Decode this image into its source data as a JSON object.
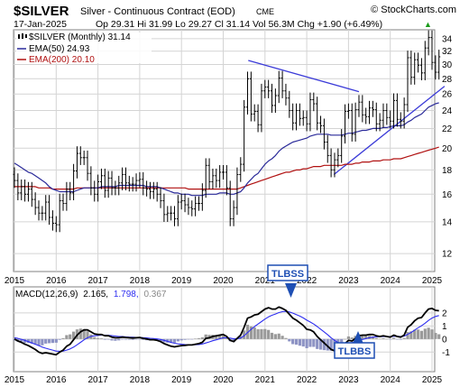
{
  "header": {
    "symbol": "$SILVER",
    "name": "Silver - Continuous Contract (EOD)",
    "exchange": "CME",
    "watermark": "© StockCharts.com",
    "date": "17-Jan-2025",
    "quote": "Op 29.31  Hi 31.99  Lo 29.27  Cl 31.14  Vol 56.3M  Chg +1.90 (+6.49%)",
    "chg_arrow": "▲"
  },
  "legend": {
    "main": "$SILVER (Monthly) 31.14",
    "ema50": "EMA(50) 24.93",
    "ema200": "EMA(200) 20.10",
    "macd_label": "MACD(12,26,9)",
    "macd_value": "2.165,",
    "signal_value": "1.798,",
    "hist_value": "0.367"
  },
  "annotations": {
    "tlbss": "TLBSS",
    "tlbbs": "TLBBS"
  },
  "colors": {
    "price": "#000000",
    "ema50": "#2b2b9a",
    "ema200": "#b01010",
    "macd": "#000000",
    "signal": "#2e2ef0",
    "histogram": "#9a9a9a",
    "trendline": "#3b3bd8",
    "annotation": "#1e4fb4",
    "grid": "#d4d4d4",
    "panel_bg": "#ffffff"
  },
  "chart_data": {
    "type": "line",
    "frequency": "monthly",
    "x_tick_labels": [
      "2015",
      "2016",
      "2017",
      "2018",
      "2019",
      "2020",
      "2021",
      "2022",
      "2023",
      "2024",
      "2025"
    ],
    "y_tick_labels": [
      "12",
      "14",
      "16",
      "18",
      "20",
      "22",
      "24",
      "26",
      "28",
      "30",
      "32",
      "34"
    ],
    "ylim": [
      11,
      35.5
    ],
    "price_close": [
      17.1,
      16.1,
      16.6,
      16.0,
      16.4,
      15.6,
      15.0,
      14.6,
      14.6,
      15.4,
      14.3,
      13.9,
      13.8,
      15.5,
      15.3,
      16.4,
      16.1,
      17.9,
      19.5,
      19.1,
      19.1,
      17.7,
      16.5,
      16.0,
      17.0,
      17.5,
      16.3,
      17.3,
      16.5,
      16.5,
      16.9,
      17.6,
      16.9,
      16.8,
      16.8,
      17.1,
      17.2,
      16.5,
      16.4,
      16.2,
      16.4,
      16.0,
      15.5,
      14.5,
      14.6,
      14.6,
      14.2,
      15.4,
      15.5,
      15.2,
      15.0,
      14.9,
      15.3,
      15.3,
      16.3,
      18.4,
      17.0,
      17.5,
      17.1,
      17.8,
      17.8,
      16.5,
      14.2,
      15.0,
      17.6,
      18.5,
      24.4,
      28.0,
      23.6,
      23.9,
      22.4,
      26.4,
      26.9,
      26.4,
      24.6,
      25.8,
      28.1,
      26.4,
      25.5,
      24.0,
      22.6,
      24.0,
      23.1,
      23.2,
      22.5,
      25.3,
      24.8,
      22.6,
      22.3,
      20.6,
      19.3,
      18.0,
      18.9,
      19.3,
      21.2,
      23.9,
      24.0,
      21.4,
      24.1,
      25.0,
      23.5,
      23.3,
      24.3,
      24.1,
      22.5,
      22.9,
      24.0,
      23.2,
      22.8,
      25.2,
      23.0,
      22.8,
      24.7,
      31.0,
      28.2,
      30.7,
      29.9,
      28.8,
      32.5,
      34.2,
      30.3,
      28.9,
      31.14
    ],
    "ema50": [
      18.6,
      18.4,
      18.2,
      18.0,
      17.8,
      17.7,
      17.5,
      17.3,
      17.1,
      16.9,
      16.6,
      16.4,
      16.3,
      16.2,
      16.2,
      16.2,
      16.2,
      16.2,
      16.3,
      16.4,
      16.5,
      16.5,
      16.5,
      16.5,
      16.5,
      16.6,
      16.6,
      16.6,
      16.6,
      16.6,
      16.7,
      16.7,
      16.7,
      16.7,
      16.7,
      16.7,
      16.7,
      16.7,
      16.6,
      16.6,
      16.6,
      16.6,
      16.5,
      16.4,
      16.3,
      16.2,
      16.1,
      16.1,
      16.0,
      16.0,
      16.0,
      15.9,
      15.9,
      15.9,
      15.9,
      16.0,
      16.0,
      16.0,
      16.0,
      16.1,
      16.1,
      16.1,
      16.0,
      16.0,
      16.1,
      16.2,
      16.5,
      16.9,
      17.2,
      17.5,
      17.7,
      18.1,
      18.5,
      18.8,
      19.0,
      19.3,
      19.7,
      20.0,
      20.2,
      20.4,
      20.6,
      20.7,
      20.8,
      20.9,
      21.0,
      21.2,
      21.3,
      21.4,
      21.4,
      21.4,
      21.4,
      21.3,
      21.3,
      21.3,
      21.3,
      21.4,
      21.5,
      21.5,
      21.6,
      21.7,
      21.8,
      21.8,
      21.9,
      22.0,
      22.0,
      22.0,
      22.1,
      22.1,
      22.2,
      22.3,
      22.3,
      22.3,
      22.4,
      22.7,
      22.9,
      23.2,
      23.4,
      23.6,
      24.0,
      24.4,
      24.6,
      24.8,
      24.93
    ],
    "ema200": [
      16.6,
      16.6,
      16.6,
      16.6,
      16.6,
      16.6,
      16.6,
      16.5,
      16.5,
      16.5,
      16.5,
      16.4,
      16.4,
      16.4,
      16.4,
      16.4,
      16.4,
      16.4,
      16.5,
      16.5,
      16.5,
      16.5,
      16.5,
      16.5,
      16.5,
      16.5,
      16.5,
      16.5,
      16.5,
      16.5,
      16.5,
      16.5,
      16.5,
      16.5,
      16.5,
      16.5,
      16.5,
      16.5,
      16.5,
      16.5,
      16.5,
      16.5,
      16.5,
      16.5,
      16.5,
      16.5,
      16.5,
      16.5,
      16.5,
      16.5,
      16.4,
      16.4,
      16.4,
      16.4,
      16.4,
      16.4,
      16.4,
      16.4,
      16.4,
      16.4,
      16.4,
      16.4,
      16.4,
      16.4,
      16.4,
      16.5,
      16.6,
      16.7,
      16.8,
      16.9,
      17.0,
      17.1,
      17.2,
      17.3,
      17.4,
      17.5,
      17.6,
      17.7,
      17.8,
      17.8,
      17.9,
      18.0,
      18.0,
      18.1,
      18.1,
      18.2,
      18.3,
      18.3,
      18.3,
      18.4,
      18.4,
      18.4,
      18.4,
      18.4,
      18.4,
      18.5,
      18.5,
      18.5,
      18.6,
      18.6,
      18.7,
      18.7,
      18.7,
      18.8,
      18.8,
      18.8,
      18.9,
      18.9,
      18.9,
      19.0,
      19.0,
      19.0,
      19.1,
      19.2,
      19.3,
      19.4,
      19.5,
      19.6,
      19.7,
      19.8,
      19.9,
      20.0,
      20.1
    ],
    "trendlines": [
      {
        "label": "descending",
        "from": [
          2020.6,
          30.6
        ],
        "to": [
          2023.25,
          26.3
        ]
      },
      {
        "label": "ascending",
        "from": [
          2022.65,
          17.6
        ],
        "to": [
          2025.3,
          27.0
        ]
      }
    ],
    "macd": {
      "ylim": [
        -2.5,
        4.0
      ],
      "y_tick_labels": [
        "-1",
        "0",
        "1",
        "2"
      ],
      "macd": [
        0.0,
        -0.15,
        -0.25,
        -0.4,
        -0.5,
        -0.65,
        -0.8,
        -1.0,
        -1.1,
        -1.05,
        -1.1,
        -1.15,
        -1.2,
        -1.0,
        -0.85,
        -0.55,
        -0.4,
        -0.05,
        0.3,
        0.55,
        0.7,
        0.7,
        0.55,
        0.4,
        0.35,
        0.35,
        0.25,
        0.25,
        0.15,
        0.1,
        0.1,
        0.15,
        0.12,
        0.1,
        0.08,
        0.1,
        0.12,
        0.05,
        0.0,
        -0.05,
        -0.05,
        -0.1,
        -0.2,
        -0.35,
        -0.45,
        -0.55,
        -0.6,
        -0.55,
        -0.5,
        -0.48,
        -0.45,
        -0.45,
        -0.4,
        -0.35,
        -0.25,
        0.05,
        0.1,
        0.2,
        0.25,
        0.3,
        0.35,
        0.2,
        -0.1,
        -0.2,
        0.05,
        0.3,
        0.9,
        1.6,
        1.7,
        1.85,
        1.9,
        2.1,
        2.3,
        2.4,
        2.3,
        2.3,
        2.45,
        2.35,
        2.2,
        1.9,
        1.6,
        1.45,
        1.25,
        1.05,
        0.75,
        0.7,
        0.55,
        0.2,
        -0.05,
        -0.3,
        -0.55,
        -0.8,
        -0.9,
        -0.9,
        -0.7,
        -0.35,
        -0.1,
        -0.15,
        0.05,
        0.25,
        0.3,
        0.3,
        0.35,
        0.35,
        0.25,
        0.2,
        0.25,
        0.2,
        0.15,
        0.3,
        0.2,
        0.15,
        0.3,
        0.9,
        1.1,
        1.4,
        1.6,
        1.65,
        2.0,
        2.3,
        2.35,
        2.2,
        2.165
      ],
      "signal": [
        0.1,
        0.05,
        -0.02,
        -0.1,
        -0.2,
        -0.3,
        -0.4,
        -0.5,
        -0.62,
        -0.7,
        -0.78,
        -0.85,
        -0.92,
        -0.94,
        -0.92,
        -0.85,
        -0.76,
        -0.62,
        -0.44,
        -0.25,
        -0.06,
        0.1,
        0.2,
        0.25,
        0.28,
        0.3,
        0.3,
        0.29,
        0.26,
        0.23,
        0.2,
        0.19,
        0.17,
        0.15,
        0.14,
        0.13,
        0.13,
        0.11,
        0.09,
        0.06,
        0.04,
        0.01,
        -0.03,
        -0.1,
        -0.17,
        -0.25,
        -0.32,
        -0.37,
        -0.4,
        -0.42,
        -0.43,
        -0.44,
        -0.43,
        -0.42,
        -0.38,
        -0.3,
        -0.22,
        -0.13,
        -0.06,
        0.02,
        0.09,
        0.11,
        0.07,
        0.02,
        0.02,
        0.08,
        0.24,
        0.5,
        0.74,
        0.96,
        1.15,
        1.34,
        1.53,
        1.7,
        1.82,
        1.92,
        2.03,
        2.1,
        2.12,
        2.08,
        1.99,
        1.88,
        1.76,
        1.62,
        1.45,
        1.3,
        1.15,
        0.96,
        0.76,
        0.55,
        0.33,
        0.1,
        -0.1,
        -0.26,
        -0.35,
        -0.35,
        -0.3,
        -0.27,
        -0.2,
        -0.11,
        -0.03,
        0.04,
        0.1,
        0.15,
        0.17,
        0.18,
        0.19,
        0.19,
        0.18,
        0.21,
        0.21,
        0.2,
        0.22,
        0.36,
        0.51,
        0.69,
        0.87,
        1.02,
        1.21,
        1.43,
        1.61,
        1.73,
        1.798
      ]
    }
  }
}
